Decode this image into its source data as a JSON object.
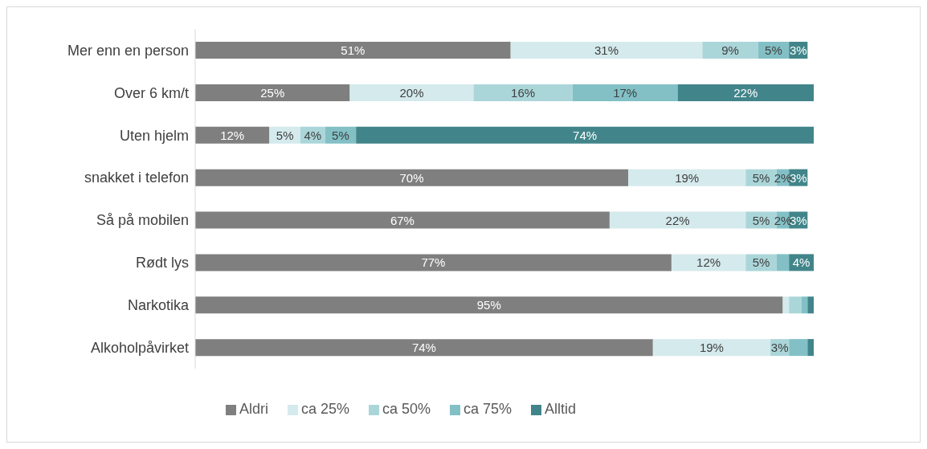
{
  "chart_data": {
    "type": "bar",
    "orientation": "horizontal",
    "stacked": true,
    "legend": "bottom",
    "grid": false,
    "categories": [
      "Mer enn en person",
      "Over 6 km/t",
      "Uten hjelm",
      "snakket i telefon",
      "Så på mobilen",
      "Rødt lys",
      "Narkotika",
      "Alkoholpåvirket"
    ],
    "series": [
      {
        "name": "Aldri",
        "color": "#7f7f7f",
        "values": [
          51,
          25,
          12,
          70,
          67,
          77,
          95,
          74
        ],
        "value_labels": [
          "51%",
          "25%",
          "12%",
          "70%",
          "67%",
          "77%",
          "95%",
          "74%"
        ]
      },
      {
        "name": "ca 25%",
        "color": "#d5eaec",
        "values": [
          31,
          20,
          5,
          19,
          22,
          12,
          1,
          19
        ],
        "value_labels": [
          "31%",
          "20%",
          "5%",
          "19%",
          "22%",
          "12%",
          null,
          "19%"
        ]
      },
      {
        "name": "ca 50%",
        "color": "#abd6d9",
        "values": [
          9,
          16,
          4,
          5,
          5,
          5,
          2,
          3
        ],
        "value_labels": [
          "9%",
          "16%",
          "4%",
          "5%",
          "5%",
          "5%",
          null,
          "3%"
        ]
      },
      {
        "name": "ca 75%",
        "color": "#82c0c6",
        "values": [
          5,
          17,
          5,
          2,
          2,
          2,
          1,
          3
        ],
        "value_labels": [
          "5%",
          "17%",
          "5%",
          "2%",
          "2%",
          null,
          null,
          null
        ]
      },
      {
        "name": "Alltid",
        "color": "#41858a",
        "values": [
          3,
          22,
          74,
          3,
          3,
          4,
          1,
          1
        ],
        "value_labels": [
          "3%",
          "22%",
          "74%",
          "3%",
          "3%",
          "4%",
          null,
          null
        ]
      }
    ]
  }
}
